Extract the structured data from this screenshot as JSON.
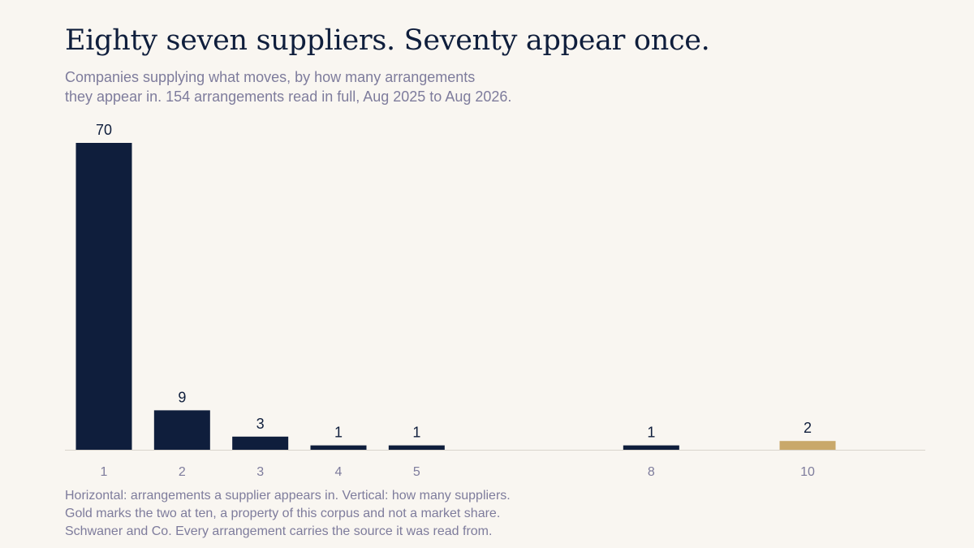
{
  "title": "Eighty seven suppliers. Seventy appear once.",
  "subtitle_lines": [
    "Companies supplying what moves, by how many arrangements",
    "they appear in. 154 arrangements read in full, Aug 2025 to Aug 2026."
  ],
  "note_lines": [
    "Horizontal: arrangements a supplier appears in. Vertical: how many suppliers.",
    "Gold marks the two at ten, a property of this corpus and not a market share.",
    "Schwaner and Co. Every arrangement carries the source it was read from."
  ],
  "colors": {
    "bar": "#0f1e3c",
    "highlight": "#c9a86a",
    "axis": "#d9d4cc"
  },
  "chart_data": {
    "type": "bar",
    "x": [
      1,
      2,
      3,
      4,
      5,
      8,
      10
    ],
    "values": [
      70,
      9,
      3,
      1,
      1,
      1,
      2
    ],
    "highlight_x": [
      10
    ],
    "xlim": [
      1,
      10
    ],
    "ylim": [
      0,
      70
    ],
    "xlabel": "",
    "ylabel": "",
    "grid": false,
    "legend": "none"
  }
}
